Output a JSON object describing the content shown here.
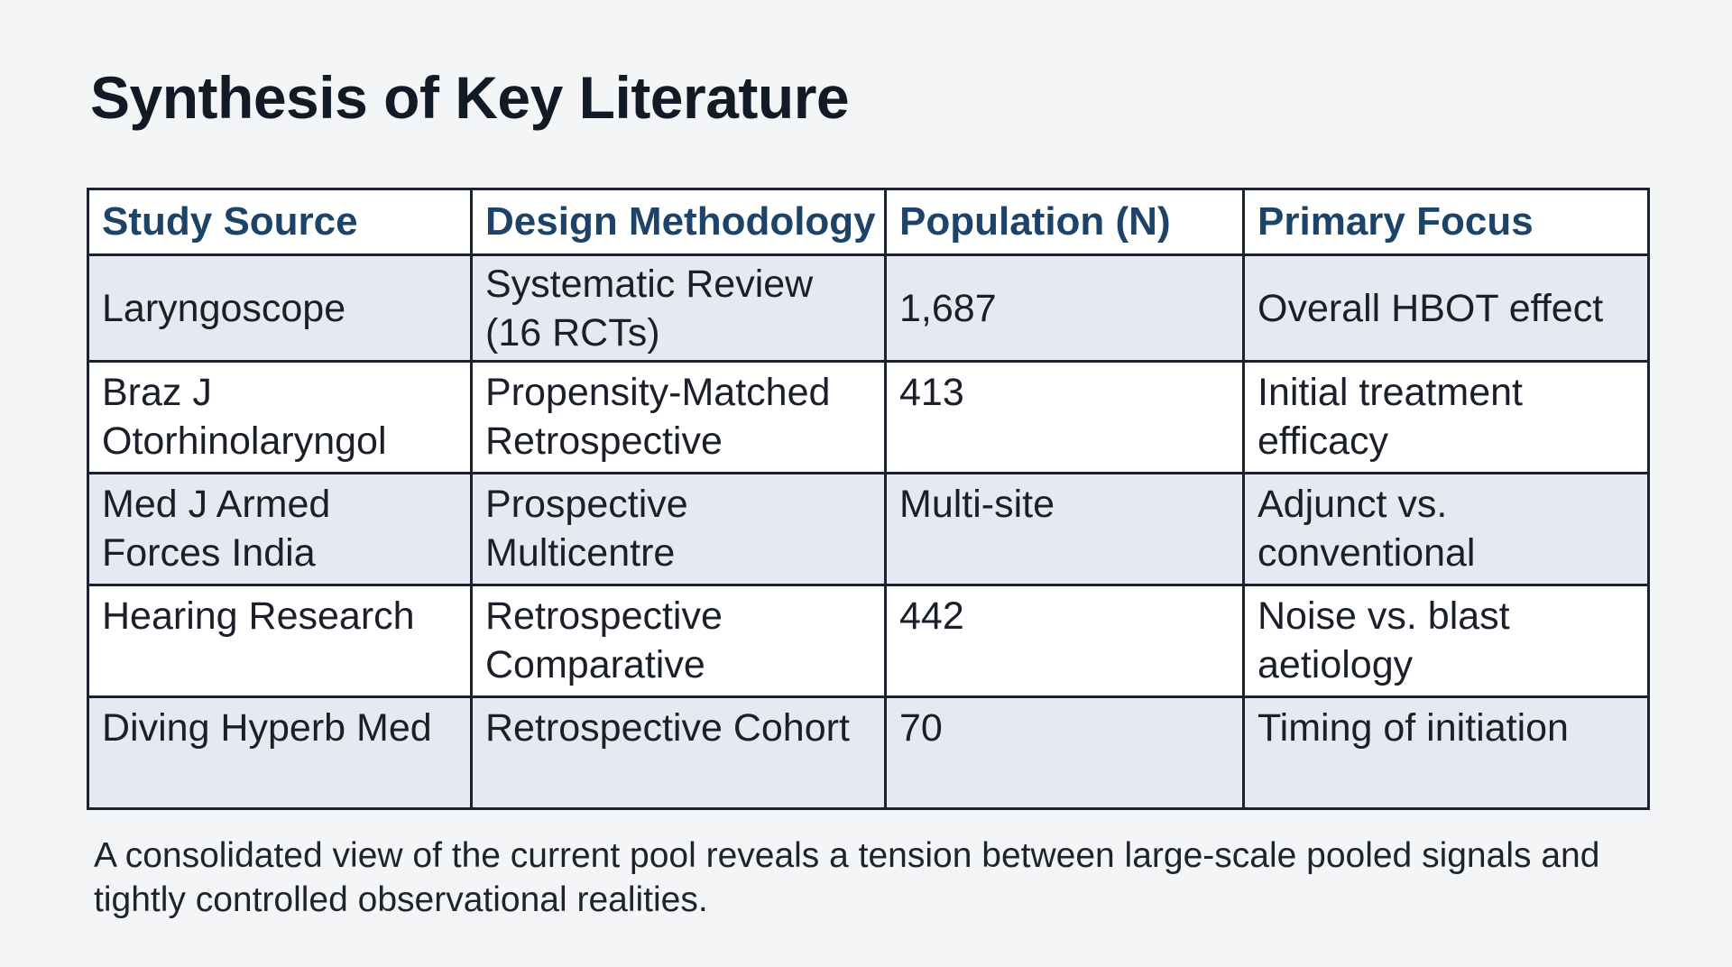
{
  "title": "Synthesis of Key Literature",
  "table": {
    "headers": [
      "Study Source",
      "Design Methodology",
      "Population (N)",
      "Primary Focus"
    ],
    "rows": [
      {
        "source": "Laryngoscope",
        "design": "Systematic Review (16 RCTs)",
        "population": "1,687",
        "focus": "Overall HBOT effect"
      },
      {
        "source": "Braz J Otorhinolaryngol",
        "design": "Propensity-Matched Retrospective",
        "population": "413",
        "focus": "Initial treatment efficacy"
      },
      {
        "source": "Med J Armed Forces India",
        "design": "Prospective Multicentre",
        "population": "Multi-site",
        "focus": "Adjunct vs. conventional"
      },
      {
        "source": "Hearing Research",
        "design": "Retrospective Comparative",
        "population": "442",
        "focus": "Noise vs. blast aetiology"
      },
      {
        "source": "Diving Hyperb Med",
        "design": "Retrospective Cohort",
        "population": "70",
        "focus": "Timing of initiation"
      }
    ]
  },
  "caption": "A consolidated view of the current pool reveals a tension between large-scale pooled signals and tightly controlled observational realities."
}
